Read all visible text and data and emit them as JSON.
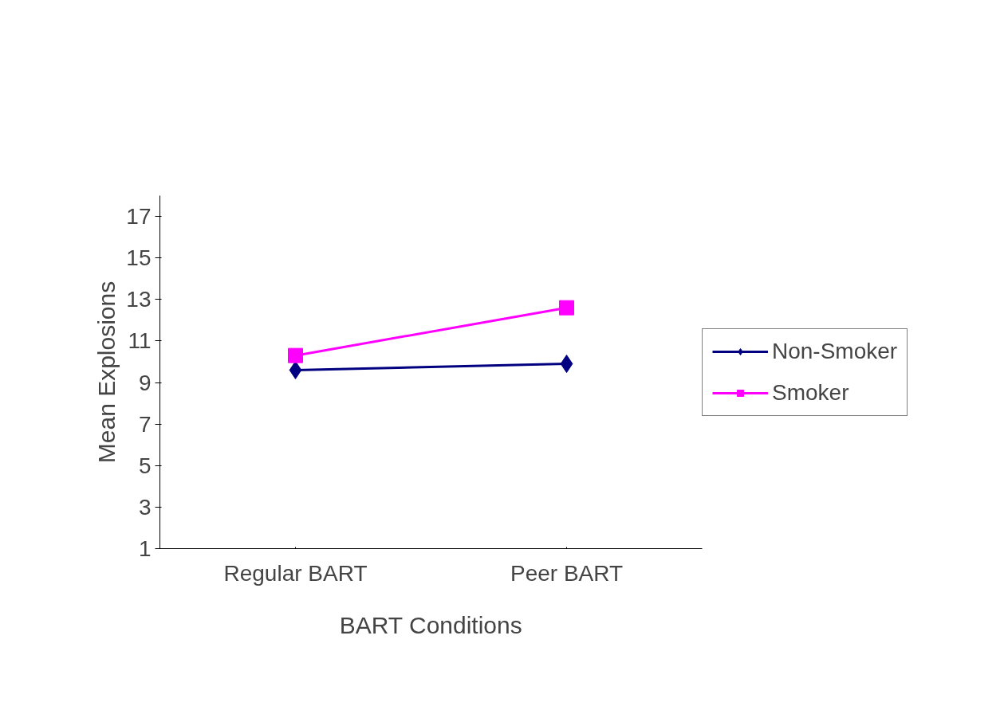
{
  "chart_data": {
    "type": "line",
    "xlabel": "BART Conditions",
    "ylabel": "Mean Explosions",
    "categories": [
      "Regular BART",
      "Peer BART"
    ],
    "series": [
      {
        "name": "Non-Smoker",
        "color": "#000080",
        "marker": "diamond",
        "values": [
          9.6,
          9.9
        ]
      },
      {
        "name": "Smoker",
        "color": "#ff00ff",
        "marker": "square",
        "values": [
          10.3,
          12.6
        ]
      }
    ],
    "ylim": [
      1,
      18
    ],
    "yticks": [
      1,
      3,
      5,
      7,
      9,
      11,
      13,
      15,
      17
    ],
    "grid": false,
    "legend": "right",
    "line_style": "solid"
  }
}
